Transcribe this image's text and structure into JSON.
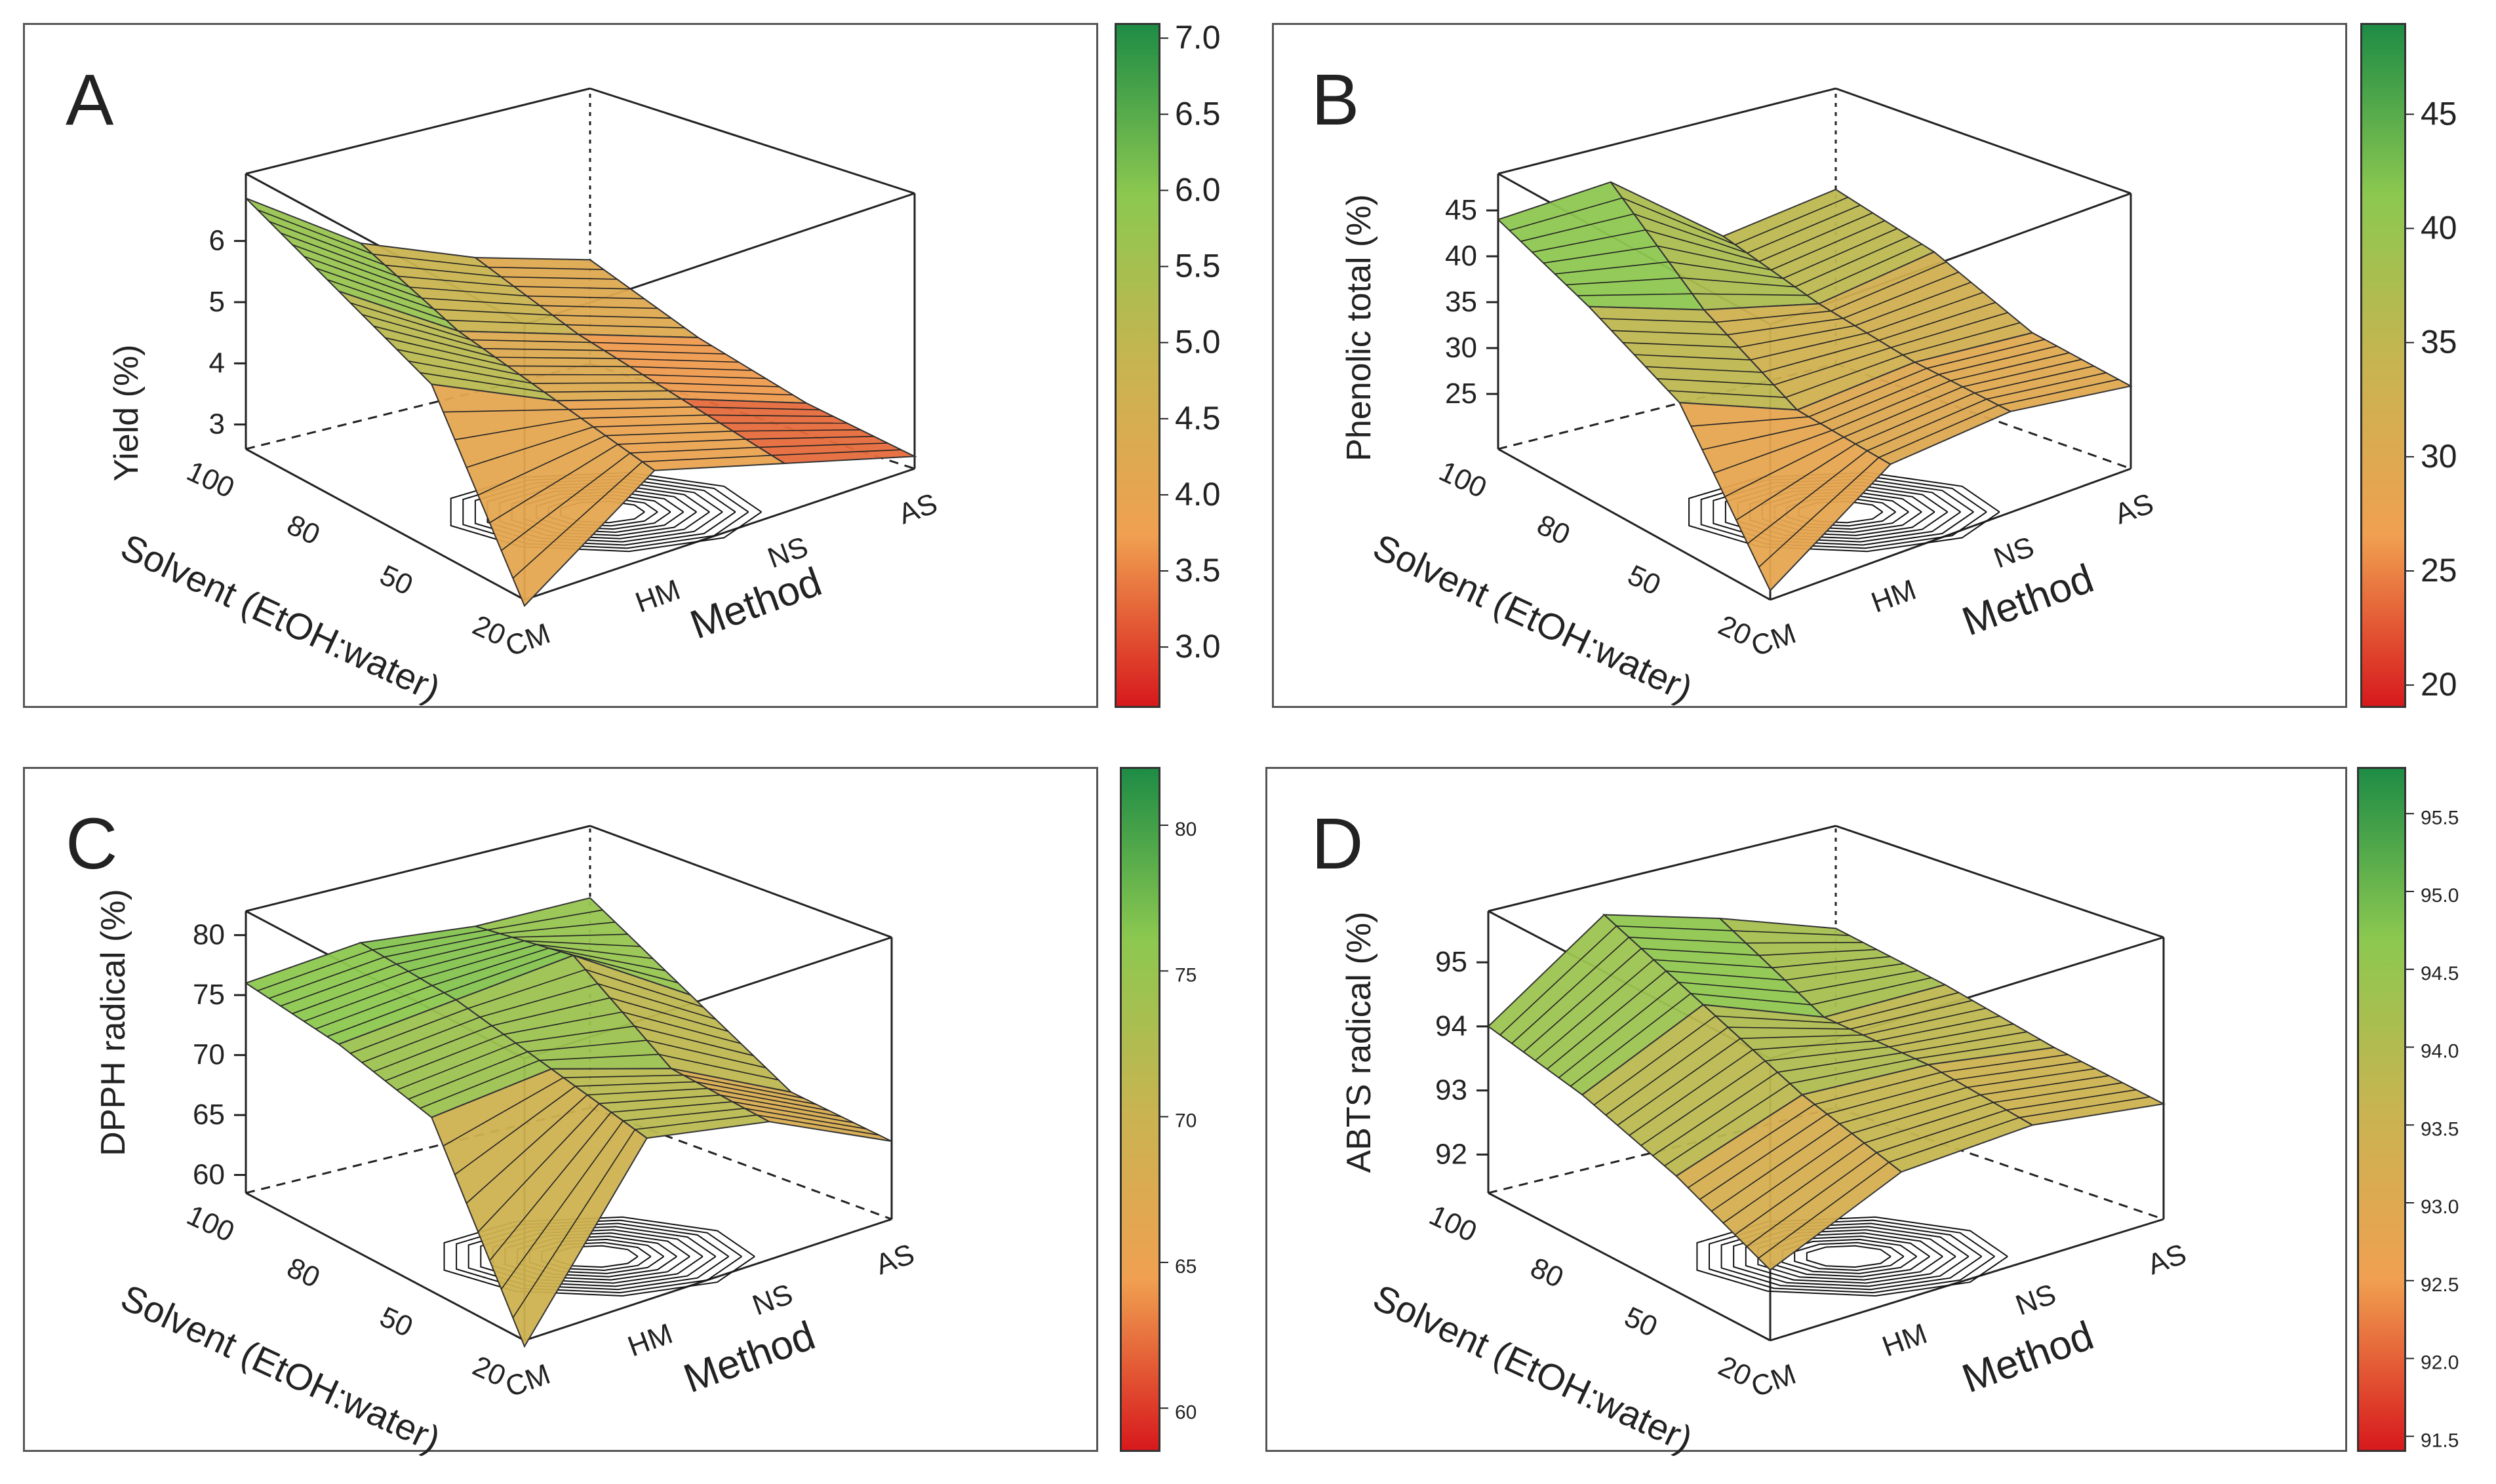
{
  "chart_data": [
    {
      "panel": "A",
      "type": "surface3d",
      "zlabel": "Yield (%)",
      "xlabel": "Method",
      "ylabel": "Solvent (EtOH:water)",
      "x_categories": [
        "CM",
        "HM",
        "NS",
        "AS"
      ],
      "y_categories": [
        "100",
        "80",
        "50",
        "20"
      ],
      "z_ticks": [
        "3",
        "4",
        "5",
        "6"
      ],
      "zlim": [
        2.6,
        7.1
      ],
      "z": [
        [
          6.7,
          5.5,
          4.8,
          4.3
        ],
        [
          6.0,
          4.8,
          4.2,
          3.6
        ],
        [
          5.3,
          4.4,
          3.8,
          3.1
        ],
        [
          2.5,
          4.0,
          3.4,
          2.8
        ]
      ],
      "colorbar_ticks": [
        "7.0",
        "6.5",
        "6.0",
        "5.5",
        "5.0",
        "4.5",
        "4.0",
        "3.5",
        "3.0"
      ]
    },
    {
      "panel": "B",
      "type": "surface3d",
      "zlabel": "Phenolic total (%)",
      "xlabel": "Method",
      "ylabel": "Solvent (EtOH:water)",
      "x_categories": [
        "CM",
        "HM",
        "NS",
        "AS"
      ],
      "y_categories": [
        "100",
        "80",
        "50",
        "20"
      ],
      "z_ticks": [
        "25",
        "30",
        "35",
        "40",
        "45"
      ],
      "zlim": [
        19,
        49
      ],
      "z": [
        [
          44,
          45,
          36,
          38
        ],
        [
          40,
          36,
          33,
          35
        ],
        [
          35,
          30,
          31,
          30
        ],
        [
          20,
          29,
          30,
          28
        ]
      ],
      "colorbar_ticks": [
        "45",
        "40",
        "35",
        "30",
        "25",
        "20"
      ]
    },
    {
      "panel": "C",
      "type": "surface3d",
      "zlabel": "DPPH radical  (%)",
      "xlabel": "Method",
      "ylabel": "Solvent (EtOH:water)",
      "x_categories": [
        "CM",
        "HM",
        "NS",
        "AS"
      ],
      "y_categories": [
        "100",
        "80",
        "50",
        "20"
      ],
      "z_ticks": [
        "60",
        "65",
        "70",
        "75",
        "80"
      ],
      "zlim": [
        58.5,
        82
      ],
      "z": [
        [
          76,
          77,
          76,
          76
        ],
        [
          75,
          76,
          77,
          71
        ],
        [
          73,
          74,
          71,
          66
        ],
        [
          58,
          72,
          70,
          65
        ]
      ],
      "colorbar_ticks": [
        "80",
        "75",
        "70",
        "65",
        "60"
      ]
    },
    {
      "panel": "D",
      "type": "surface3d",
      "zlabel": "ABTS radical (%)",
      "xlabel": "Method",
      "ylabel": "Solvent (EtOH:water)",
      "x_categories": [
        "CM",
        "HM",
        "NS",
        "AS"
      ],
      "y_categories": [
        "100",
        "80",
        "50",
        "20"
      ],
      "z_ticks": [
        "92",
        "93",
        "94",
        "95"
      ],
      "zlim": [
        91.4,
        95.8
      ],
      "z": [
        [
          94.0,
          95.3,
          94.8,
          94.2
        ],
        [
          93.7,
          94.6,
          93.9,
          93.9
        ],
        [
          93.2,
          93.9,
          93.8,
          93.5
        ],
        [
          92.5,
          93.4,
          93.5,
          93.2
        ]
      ],
      "colorbar_ticks": [
        "95.5",
        "95.0",
        "94.5",
        "94.0",
        "93.5",
        "93.0",
        "92.5",
        "92.0",
        "91.5"
      ]
    }
  ],
  "colors": {
    "high": "#1e8c45",
    "mid_green": "#8cc850",
    "mid": "#c8b450",
    "mid_orange": "#f0a050",
    "low": "#d7191c",
    "contour": "#111111"
  }
}
